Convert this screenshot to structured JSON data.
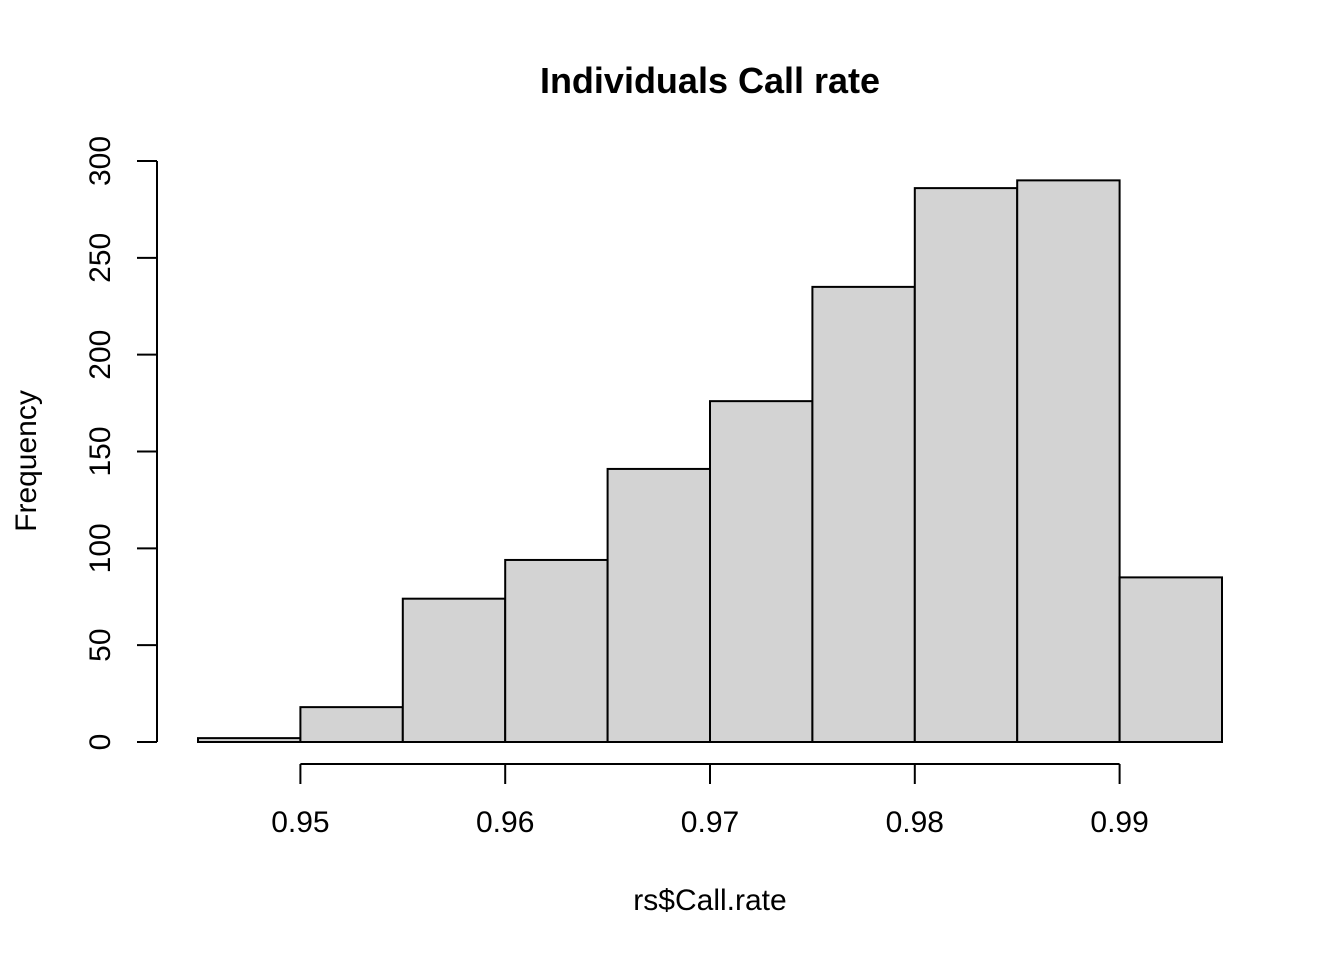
{
  "chart_data": {
    "type": "bar",
    "title": "Individuals Call rate",
    "xlabel": "rs$Call.rate",
    "ylabel": "Frequency",
    "bins": [
      {
        "start": 0.945,
        "end": 0.95,
        "count": 2
      },
      {
        "start": 0.95,
        "end": 0.955,
        "count": 18
      },
      {
        "start": 0.955,
        "end": 0.96,
        "count": 74
      },
      {
        "start": 0.96,
        "end": 0.965,
        "count": 94
      },
      {
        "start": 0.965,
        "end": 0.97,
        "count": 141
      },
      {
        "start": 0.97,
        "end": 0.975,
        "count": 176
      },
      {
        "start": 0.975,
        "end": 0.98,
        "count": 235
      },
      {
        "start": 0.98,
        "end": 0.985,
        "count": 286
      },
      {
        "start": 0.985,
        "end": 0.99,
        "count": 290
      },
      {
        "start": 0.99,
        "end": 0.995,
        "count": 85
      }
    ],
    "x_ticks": [
      0.95,
      0.96,
      0.97,
      0.98,
      0.99
    ],
    "x_tick_labels": [
      "0.95",
      "0.96",
      "0.97",
      "0.98",
      "0.99"
    ],
    "y_ticks": [
      0,
      50,
      100,
      150,
      200,
      250,
      300
    ],
    "y_tick_labels": [
      "0",
      "50",
      "100",
      "150",
      "200",
      "250",
      "300"
    ],
    "xlim": [
      0.945,
      0.995
    ],
    "ylim": [
      0,
      300
    ],
    "grid": false,
    "colors": {
      "bar_fill": "#d3d3d3",
      "bar_stroke": "#000000"
    }
  }
}
